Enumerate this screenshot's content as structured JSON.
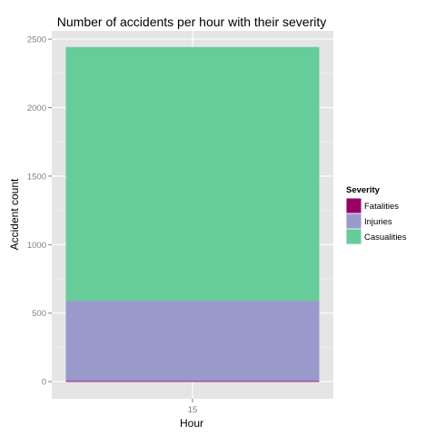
{
  "chart_data": {
    "type": "bar",
    "stacked": true,
    "title": "Number of accidents per hour with their severity",
    "xlabel": "Hour",
    "ylabel": "Accident count",
    "categories": [
      "15"
    ],
    "series": [
      {
        "name": "Fatalities",
        "values": [
          5
        ],
        "color": "#990066"
      },
      {
        "name": "Injuries",
        "values": [
          585
        ],
        "color": "#9999CC"
      },
      {
        "name": "Casualities",
        "values": [
          1852
        ],
        "color": "#66CC99"
      }
    ],
    "ylim": [
      -125,
      2560
    ],
    "yticks": [
      0,
      500,
      1000,
      1500,
      2000,
      2500
    ],
    "grid": true,
    "panel_background": "#E5E5E5",
    "legend": {
      "title": "Severity",
      "position": "right"
    }
  }
}
